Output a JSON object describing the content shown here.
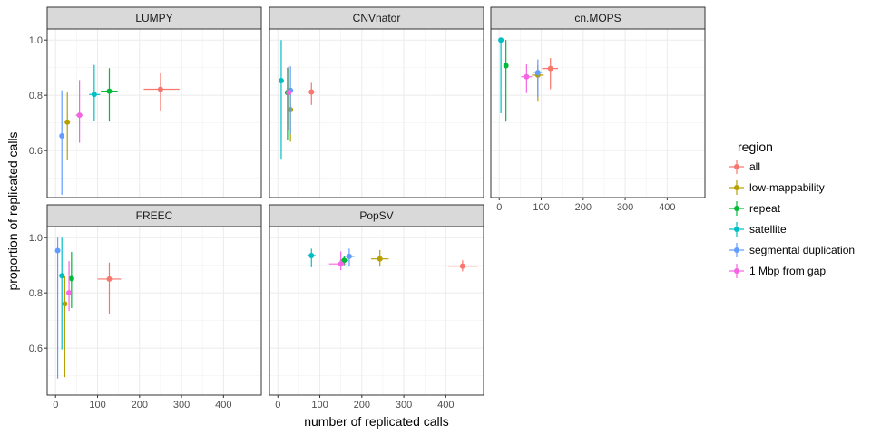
{
  "chart_data": {
    "type": "scatter",
    "facets": [
      "LUMPY",
      "CNVnator",
      "cn.MOPS",
      "FREEC",
      "PopSV"
    ],
    "xlabel": "number of replicated calls",
    "ylabel": "proportion of replicated calls",
    "xlim": [
      -20,
      490
    ],
    "ylim": [
      0.43,
      1.04
    ],
    "xticks": [
      0,
      100,
      200,
      300,
      400
    ],
    "xtick_labels": [
      "0",
      "100",
      "200",
      "300",
      "400"
    ],
    "yticks": [
      0.6,
      0.8,
      1.0
    ],
    "ytick_labels": [
      "0.6",
      "0.8",
      "1.0"
    ],
    "grid": true,
    "legend": {
      "title": "region",
      "position": "right",
      "entries": [
        "all",
        "low-mappability",
        "repeat",
        "satellite",
        "segmental duplication",
        "1 Mbp from gap"
      ]
    },
    "colors": {
      "all": "#F8766D",
      "low-mappability": "#B79F00",
      "repeat": "#00BA38",
      "satellite": "#00BFC4",
      "segmental duplication": "#619CFF",
      "1 Mbp from gap": "#F564E3"
    },
    "series": [
      {
        "facet": "LUMPY",
        "region": "all",
        "x": 250,
        "y": 0.822,
        "xmin": 210,
        "xmax": 295,
        "ymin": 0.745,
        "ymax": 0.882
      },
      {
        "facet": "LUMPY",
        "region": "low-mappability",
        "x": 28,
        "y": 0.703,
        "xmin": 22,
        "xmax": 34,
        "ymin": 0.565,
        "ymax": 0.81
      },
      {
        "facet": "LUMPY",
        "region": "repeat",
        "x": 128,
        "y": 0.815,
        "xmin": 108,
        "xmax": 148,
        "ymin": 0.705,
        "ymax": 0.898
      },
      {
        "facet": "LUMPY",
        "region": "satellite",
        "x": 92,
        "y": 0.803,
        "xmin": 80,
        "xmax": 106,
        "ymin": 0.708,
        "ymax": 0.91
      },
      {
        "facet": "LUMPY",
        "region": "segmental duplication",
        "x": 15,
        "y": 0.653,
        "xmin": 12,
        "xmax": 18,
        "ymin": 0.44,
        "ymax": 0.818
      },
      {
        "facet": "LUMPY",
        "region": "1 Mbp from gap",
        "x": 57,
        "y": 0.728,
        "xmin": 48,
        "xmax": 66,
        "ymin": 0.628,
        "ymax": 0.855
      },
      {
        "facet": "CNVnator",
        "region": "all",
        "x": 80,
        "y": 0.812,
        "xmin": 68,
        "xmax": 92,
        "ymin": 0.765,
        "ymax": 0.845
      },
      {
        "facet": "CNVnator",
        "region": "low-mappability",
        "x": 30,
        "y": 0.748,
        "xmin": 26,
        "xmax": 34,
        "ymin": 0.632,
        "ymax": 0.82
      },
      {
        "facet": "CNVnator",
        "region": "repeat",
        "x": 23,
        "y": 0.81,
        "xmin": 20,
        "xmax": 26,
        "ymin": 0.64,
        "ymax": 0.9
      },
      {
        "facet": "CNVnator",
        "region": "satellite",
        "x": 8,
        "y": 0.853,
        "xmin": 6,
        "xmax": 10,
        "ymin": 0.57,
        "ymax": 1.0
      },
      {
        "facet": "CNVnator",
        "region": "segmental duplication",
        "x": 30,
        "y": 0.818,
        "xmin": 26,
        "xmax": 34,
        "ymin": 0.66,
        "ymax": 0.905
      },
      {
        "facet": "CNVnator",
        "region": "1 Mbp from gap",
        "x": 26,
        "y": 0.81,
        "xmin": 22,
        "xmax": 30,
        "ymin": 0.675,
        "ymax": 0.905
      },
      {
        "facet": "cn.MOPS",
        "region": "all",
        "x": 122,
        "y": 0.897,
        "xmin": 102,
        "xmax": 140,
        "ymin": 0.822,
        "ymax": 0.935
      },
      {
        "facet": "cn.MOPS",
        "region": "low-mappability",
        "x": 92,
        "y": 0.873,
        "xmin": 78,
        "xmax": 106,
        "ymin": 0.78,
        "ymax": 0.91
      },
      {
        "facet": "cn.MOPS",
        "region": "repeat",
        "x": 16,
        "y": 0.907,
        "xmin": 12,
        "xmax": 20,
        "ymin": 0.705,
        "ymax": 1.0
      },
      {
        "facet": "cn.MOPS",
        "region": "satellite",
        "x": 4,
        "y": 1.0,
        "xmin": 2,
        "xmax": 6,
        "ymin": 0.735,
        "ymax": 1.0
      },
      {
        "facet": "cn.MOPS",
        "region": "segmental duplication",
        "x": 92,
        "y": 0.882,
        "xmin": 82,
        "xmax": 102,
        "ymin": 0.795,
        "ymax": 0.93
      },
      {
        "facet": "cn.MOPS",
        "region": "1 Mbp from gap",
        "x": 65,
        "y": 0.867,
        "xmin": 52,
        "xmax": 78,
        "ymin": 0.808,
        "ymax": 0.912
      },
      {
        "facet": "FREEC",
        "region": "all",
        "x": 128,
        "y": 0.85,
        "xmin": 100,
        "xmax": 156,
        "ymin": 0.725,
        "ymax": 0.91
      },
      {
        "facet": "FREEC",
        "region": "low-mappability",
        "x": 22,
        "y": 0.76,
        "xmin": 18,
        "xmax": 26,
        "ymin": 0.495,
        "ymax": 0.86
      },
      {
        "facet": "FREEC",
        "region": "repeat",
        "x": 38,
        "y": 0.852,
        "xmin": 33,
        "xmax": 43,
        "ymin": 0.745,
        "ymax": 0.948
      },
      {
        "facet": "FREEC",
        "region": "satellite",
        "x": 15,
        "y": 0.862,
        "xmin": 12,
        "xmax": 18,
        "ymin": 0.595,
        "ymax": 1.0
      },
      {
        "facet": "FREEC",
        "region": "segmental duplication",
        "x": 5,
        "y": 0.953,
        "xmin": 3,
        "xmax": 7,
        "ymin": 0.49,
        "ymax": 1.0
      },
      {
        "facet": "FREEC",
        "region": "1 Mbp from gap",
        "x": 32,
        "y": 0.8,
        "xmin": 28,
        "xmax": 36,
        "ymin": 0.735,
        "ymax": 0.915
      },
      {
        "facet": "PopSV",
        "region": "all",
        "x": 440,
        "y": 0.897,
        "xmin": 405,
        "xmax": 476,
        "ymin": 0.878,
        "ymax": 0.918
      },
      {
        "facet": "PopSV",
        "region": "low-mappability",
        "x": 243,
        "y": 0.923,
        "xmin": 222,
        "xmax": 264,
        "ymin": 0.895,
        "ymax": 0.955
      },
      {
        "facet": "PopSV",
        "region": "repeat",
        "x": 158,
        "y": 0.918,
        "xmin": 148,
        "xmax": 168,
        "ymin": 0.9,
        "ymax": 0.935
      },
      {
        "facet": "PopSV",
        "region": "satellite",
        "x": 80,
        "y": 0.935,
        "xmin": 70,
        "xmax": 90,
        "ymin": 0.893,
        "ymax": 0.96
      },
      {
        "facet": "PopSV",
        "region": "segmental duplication",
        "x": 170,
        "y": 0.932,
        "xmin": 158,
        "xmax": 182,
        "ymin": 0.895,
        "ymax": 0.96
      },
      {
        "facet": "PopSV",
        "region": "1 Mbp from gap",
        "x": 150,
        "y": 0.905,
        "xmin": 122,
        "xmax": 162,
        "ymin": 0.882,
        "ymax": 0.95
      }
    ]
  }
}
